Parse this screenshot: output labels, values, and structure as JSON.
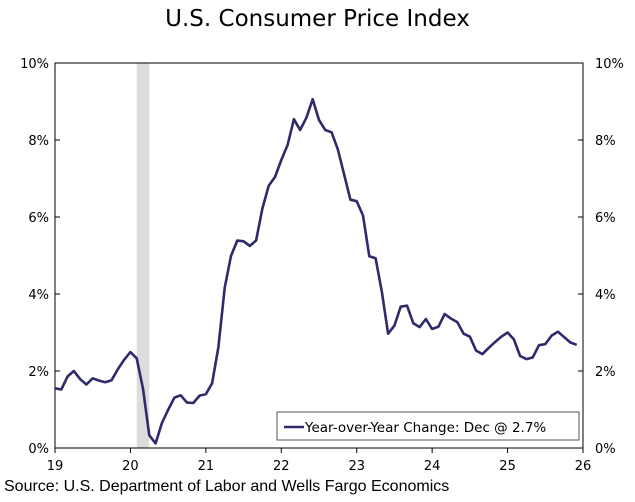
{
  "chart_data": {
    "type": "line",
    "title": "U.S. Consumer Price Index",
    "source": "Source: U.S. Department of Labor and Wells Fargo Economics",
    "xlim": [
      "2019-01",
      "2026-01"
    ],
    "ylim": [
      0,
      10
    ],
    "x_tick_labels": [
      "19",
      "20",
      "21",
      "22",
      "23",
      "24",
      "25",
      "26"
    ],
    "y_tick_labels": [
      "0%",
      "2%",
      "4%",
      "6%",
      "8%",
      "10%"
    ],
    "y_ticks": [
      0,
      2,
      4,
      6,
      8,
      10
    ],
    "grid": false,
    "legend_placement": "bottom-right",
    "recession_shading": {
      "start": "2020-02",
      "end": "2020-04",
      "color": "#dcdcdc"
    },
    "series": [
      {
        "name": "Year-over-Year Change: Dec @ 2.7%",
        "color": "#2e2a6b",
        "x": [
          "2019-01",
          "2019-02",
          "2019-03",
          "2019-04",
          "2019-05",
          "2019-06",
          "2019-07",
          "2019-08",
          "2019-09",
          "2019-10",
          "2019-11",
          "2019-12",
          "2020-01",
          "2020-02",
          "2020-03",
          "2020-04",
          "2020-05",
          "2020-06",
          "2020-07",
          "2020-08",
          "2020-09",
          "2020-10",
          "2020-11",
          "2020-12",
          "2021-01",
          "2021-02",
          "2021-03",
          "2021-04",
          "2021-05",
          "2021-06",
          "2021-07",
          "2021-08",
          "2021-09",
          "2021-10",
          "2021-11",
          "2021-12",
          "2022-01",
          "2022-02",
          "2022-03",
          "2022-04",
          "2022-05",
          "2022-06",
          "2022-07",
          "2022-08",
          "2022-09",
          "2022-10",
          "2022-11",
          "2022-12",
          "2023-01",
          "2023-02",
          "2023-03",
          "2023-04",
          "2023-05",
          "2023-06",
          "2023-07",
          "2023-08",
          "2023-09",
          "2023-10",
          "2023-11",
          "2023-12",
          "2024-01",
          "2024-02",
          "2024-03",
          "2024-04",
          "2024-05",
          "2024-06",
          "2024-07",
          "2024-08",
          "2024-09",
          "2024-10",
          "2024-11",
          "2024-12",
          "2025-01",
          "2025-02",
          "2025-03",
          "2025-04",
          "2025-05",
          "2025-06",
          "2025-07",
          "2025-08",
          "2025-09",
          "2025-11",
          "2025-12"
        ],
        "values": [
          1.55,
          1.52,
          1.86,
          2.0,
          1.79,
          1.65,
          1.81,
          1.75,
          1.71,
          1.76,
          2.05,
          2.29,
          2.49,
          2.33,
          1.54,
          0.33,
          0.12,
          0.65,
          0.99,
          1.31,
          1.37,
          1.18,
          1.17,
          1.36,
          1.4,
          1.68,
          2.62,
          4.16,
          4.99,
          5.39,
          5.37,
          5.25,
          5.39,
          6.22,
          6.81,
          7.04,
          7.48,
          7.87,
          8.54,
          8.26,
          8.58,
          9.06,
          8.52,
          8.26,
          8.2,
          7.75,
          7.11,
          6.45,
          6.41,
          6.04,
          4.98,
          4.93,
          4.05,
          2.97,
          3.18,
          3.67,
          3.7,
          3.24,
          3.14,
          3.35,
          3.09,
          3.15,
          3.48,
          3.36,
          3.27,
          2.97,
          2.89,
          2.53,
          2.44,
          2.6,
          2.75,
          2.89,
          3.0,
          2.82,
          2.39,
          2.31,
          2.35,
          2.67,
          2.7,
          2.92,
          3.02,
          2.74,
          2.68
        ]
      }
    ]
  }
}
